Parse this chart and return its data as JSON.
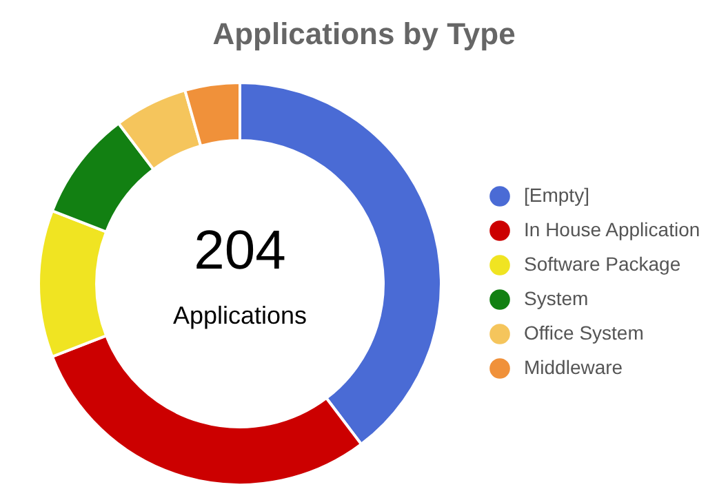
{
  "chart_data": {
    "type": "donut",
    "title": "Applications by Type",
    "categories": [
      "[Empty]",
      "In House Application",
      "Software Package",
      "System",
      "Office System",
      "Middleware"
    ],
    "values": [
      39.7,
      29.4,
      11.8,
      8.8,
      5.9,
      4.4
    ],
    "colors": [
      "#4a6bd5",
      "#cc0000",
      "#f0e422",
      "#128012",
      "#f5c55c",
      "#f0913a"
    ],
    "annotations": [
      "204",
      "Applications"
    ],
    "legend": "right"
  }
}
